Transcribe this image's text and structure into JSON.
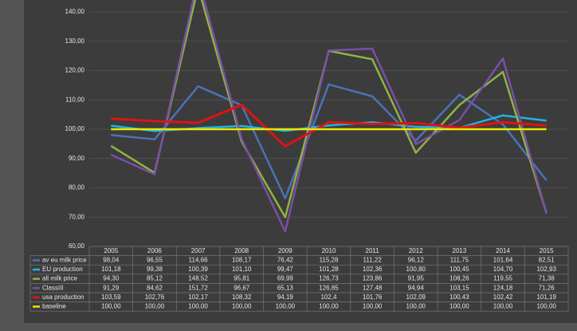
{
  "chart_data": {
    "type": "line",
    "categories": [
      "2005",
      "2006",
      "2007",
      "2008",
      "2009",
      "2010",
      "2011",
      "2012",
      "2013",
      "2014",
      "2015"
    ],
    "ylim": [
      60,
      150
    ],
    "yticks": [
      {
        "value": 60,
        "label": "60,00"
      },
      {
        "value": 70,
        "label": "70,00"
      },
      {
        "value": 80,
        "label": "80,00"
      },
      {
        "value": 90,
        "label": "90,00"
      },
      {
        "value": 100,
        "label": "100,00"
      },
      {
        "value": 110,
        "label": "110,00"
      },
      {
        "value": 120,
        "label": "120,00"
      },
      {
        "value": 130,
        "label": "130,00"
      },
      {
        "value": 140,
        "label": "140,00"
      }
    ],
    "grid": true,
    "series": [
      {
        "name": "av eu milk price",
        "color": "#4a72b8",
        "values": [
          98.04,
          96.55,
          114.66,
          108.17,
          76.42,
          115.28,
          111.22,
          96.12,
          111.75,
          101.64,
          82.51
        ],
        "value_labels": [
          "98,04",
          "96,55",
          "114,66",
          "108,17",
          "76,42",
          "115,28",
          "111,22",
          "96,12",
          "111,75",
          "101,64",
          "82,51"
        ]
      },
      {
        "name": "EU production",
        "color": "#1fb4e6",
        "values": [
          101.18,
          99.38,
          100.39,
          101.1,
          99.47,
          101.28,
          102.36,
          100.8,
          100.45,
          104.7,
          102.93
        ],
        "value_labels": [
          "101,18",
          "99,38",
          "100,39",
          "101,10",
          "99,47",
          "101,28",
          "102,36",
          "100,80",
          "100,45",
          "104,70",
          "102,93"
        ]
      },
      {
        "name": "all milk price",
        "color": "#8db443",
        "values": [
          94.3,
          85.12,
          148.52,
          95.81,
          69.99,
          126.73,
          123.86,
          91.95,
          108.26,
          119.55,
          71.38
        ],
        "value_labels": [
          "94,30",
          "85,12",
          "148,52",
          "95,81",
          "69,99",
          "126,73",
          "123,86",
          "91,95",
          "108,26",
          "119,55",
          "71,38"
        ]
      },
      {
        "name": "ClassIII",
        "color": "#7a4fa3",
        "values": [
          91.29,
          84.62,
          151.72,
          96.67,
          65.13,
          126.85,
          127.48,
          94.94,
          103.15,
          124.18,
          71.26
        ],
        "value_labels": [
          "91,29",
          "84,62",
          "151,72",
          "96,67",
          "65,13",
          "126,85",
          "127,48",
          "94,94",
          "103,15",
          "124,18",
          "71,26"
        ]
      },
      {
        "name": "usa production",
        "color": "#e01212",
        "values": [
          103.59,
          102.76,
          102.17,
          108.32,
          94.19,
          102.4,
          101.76,
          102.09,
          100.43,
          102.42,
          101.19
        ],
        "value_labels": [
          "103,59",
          "102,76",
          "102,17",
          "108,32",
          "94,19",
          "102,4",
          "101,76",
          "102,09",
          "100,43",
          "102,42",
          "101,19"
        ]
      },
      {
        "name": "baseline",
        "color": "#e8e800",
        "values": [
          100,
          100,
          100,
          100,
          100,
          100,
          100,
          100,
          100,
          100,
          100
        ],
        "value_labels": [
          "100,00",
          "100,00",
          "100,00",
          "100,00",
          "100,00",
          "100,00",
          "100,00",
          "100,00",
          "100,00",
          "100,00",
          "100,00"
        ]
      }
    ]
  }
}
